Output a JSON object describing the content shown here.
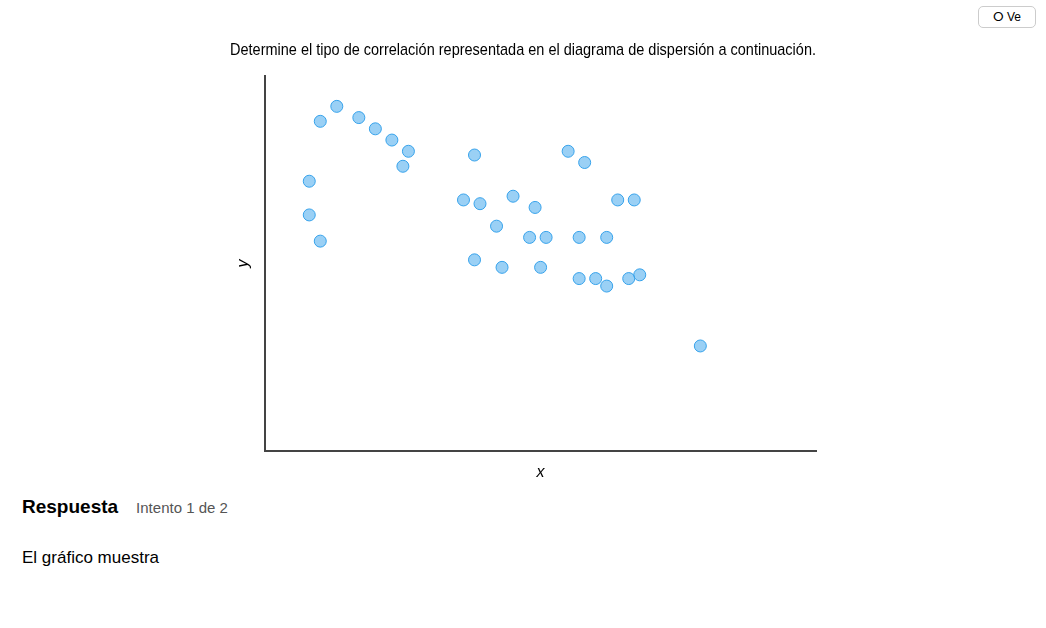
{
  "chart_data": {
    "type": "scatter",
    "title": "Determine el tipo de correlación representada en el diagrama de dispersión a continuación.",
    "xlabel": "x",
    "ylabel": "y",
    "x": [
      0.1,
      0.13,
      0.17,
      0.2,
      0.23,
      0.26,
      0.25,
      0.08,
      0.38,
      0.55,
      0.58,
      0.08,
      0.36,
      0.39,
      0.45,
      0.49,
      0.64,
      0.67,
      0.1,
      0.42,
      0.48,
      0.51,
      0.57,
      0.62,
      0.38,
      0.43,
      0.5,
      0.57,
      0.6,
      0.62,
      0.66,
      0.68,
      0.79
    ],
    "values": [
      0.88,
      0.92,
      0.89,
      0.86,
      0.83,
      0.8,
      0.76,
      0.72,
      0.79,
      0.8,
      0.77,
      0.63,
      0.67,
      0.66,
      0.68,
      0.65,
      0.67,
      0.67,
      0.56,
      0.6,
      0.57,
      0.57,
      0.57,
      0.57,
      0.51,
      0.49,
      0.49,
      0.46,
      0.46,
      0.44,
      0.46,
      0.47,
      0.28
    ],
    "xlim": [
      0,
      1
    ],
    "ylim": [
      0,
      1
    ],
    "tick_labels": false,
    "grid": false,
    "annotations": [
      "ⵔ Ve",
      "Respuesta",
      "Intento 1 de 2",
      "El gráfico muestra"
    ]
  }
}
